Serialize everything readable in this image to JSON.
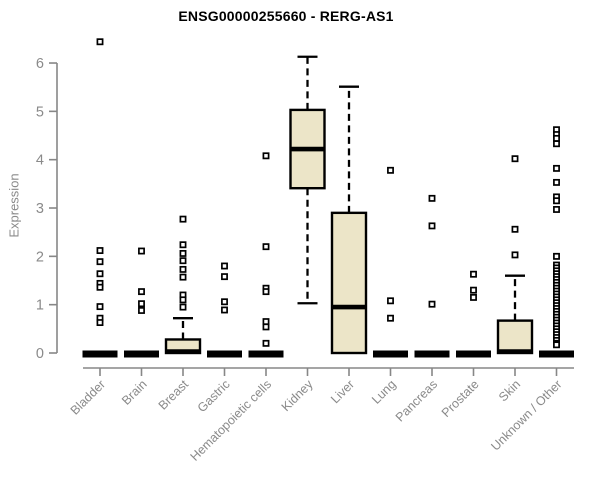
{
  "title": "ENSG00000255660 - RERG-AS1",
  "ylabel": "Expression",
  "colors": {
    "box_fill": "#ece5c8",
    "box_stroke": "#000000",
    "axis_line": "#878787",
    "axis_text": "#8a8a8a",
    "title_text": "#000000",
    "background": "#ffffff"
  },
  "chart_data": {
    "type": "boxplot",
    "title": "ENSG00000255660 - RERG-AS1",
    "xlabel": "",
    "ylabel": "Expression",
    "ylim": [
      0,
      6
    ],
    "yticks": [
      0,
      1,
      2,
      3,
      4,
      5,
      6
    ],
    "grid": false,
    "legend": "none",
    "categories": [
      "Bladder",
      "Brain",
      "Breast",
      "Gastric",
      "Hematopoietic cells",
      "Kidney",
      "Liver",
      "Lung",
      "Pancreas",
      "Prostate",
      "Skin",
      "Unknown / Other"
    ],
    "series": [
      {
        "category": "Bladder",
        "q1": 0,
        "median": 0,
        "q3": 0,
        "whisker_low": 0,
        "whisker_high": 0,
        "outliers": [
          6.44,
          2.12,
          1.89,
          1.64,
          1.44,
          1.36,
          0.96,
          0.72,
          0.63
        ]
      },
      {
        "category": "Brain",
        "q1": 0,
        "median": 0,
        "q3": 0,
        "whisker_low": 0,
        "whisker_high": 0,
        "outliers": [
          2.11,
          1.27,
          1.02,
          0.88
        ]
      },
      {
        "category": "Breast",
        "q1": 0,
        "median": 0.03,
        "q3": 0.28,
        "whisker_low": 0,
        "whisker_high": 0.72,
        "outliers": [
          2.77,
          2.24,
          2.06,
          1.91,
          1.73,
          1.57,
          1.2,
          1.1,
          0.95
        ]
      },
      {
        "category": "Gastric",
        "q1": 0,
        "median": 0,
        "q3": 0,
        "whisker_low": 0,
        "whisker_high": 0,
        "outliers": [
          1.8,
          1.58,
          1.06,
          0.89
        ]
      },
      {
        "category": "Hematopoietic cells",
        "q1": 0,
        "median": 0,
        "q3": 0,
        "whisker_low": 0,
        "whisker_high": 0,
        "outliers": [
          4.08,
          2.2,
          1.34,
          1.27,
          0.65,
          0.54,
          0.2
        ]
      },
      {
        "category": "Kidney",
        "q1": 3.41,
        "median": 4.22,
        "q3": 5.03,
        "whisker_low": 1.03,
        "whisker_high": 6.13,
        "outliers": []
      },
      {
        "category": "Liver",
        "q1": 0,
        "median": 0.95,
        "q3": 2.9,
        "whisker_low": 0,
        "whisker_high": 5.51,
        "outliers": []
      },
      {
        "category": "Lung",
        "q1": 0,
        "median": 0,
        "q3": 0,
        "whisker_low": 0,
        "whisker_high": 0,
        "outliers": [
          3.78,
          1.08,
          0.72
        ]
      },
      {
        "category": "Pancreas",
        "q1": 0,
        "median": 0,
        "q3": 0,
        "whisker_low": 0,
        "whisker_high": 0,
        "outliers": [
          3.2,
          2.63,
          1.01
        ]
      },
      {
        "category": "Prostate",
        "q1": 0,
        "median": 0,
        "q3": 0,
        "whisker_low": 0,
        "whisker_high": 0,
        "outliers": [
          1.63,
          1.3,
          1.15
        ]
      },
      {
        "category": "Skin",
        "q1": 0,
        "median": 0.03,
        "q3": 0.67,
        "whisker_low": 0,
        "whisker_high": 1.6,
        "outliers": [
          4.02,
          2.56,
          2.03
        ]
      },
      {
        "category": "Unknown / Other",
        "q1": 0,
        "median": 0,
        "q3": 0,
        "whisker_low": 0,
        "whisker_high": 0,
        "outliers": [
          4.62,
          4.52,
          4.44,
          4.33,
          3.82,
          3.53,
          3.23,
          3.15,
          2.97,
          2.0,
          1.82,
          1.76,
          1.7,
          1.64,
          1.58,
          1.52,
          1.46,
          1.4,
          1.34,
          1.28,
          1.22,
          1.16,
          1.1,
          1.04,
          0.98,
          0.92,
          0.86,
          0.8,
          0.74,
          0.68,
          0.62,
          0.56,
          0.5,
          0.44,
          0.38,
          0.32,
          0.26,
          0.2,
          0.17
        ]
      }
    ]
  }
}
